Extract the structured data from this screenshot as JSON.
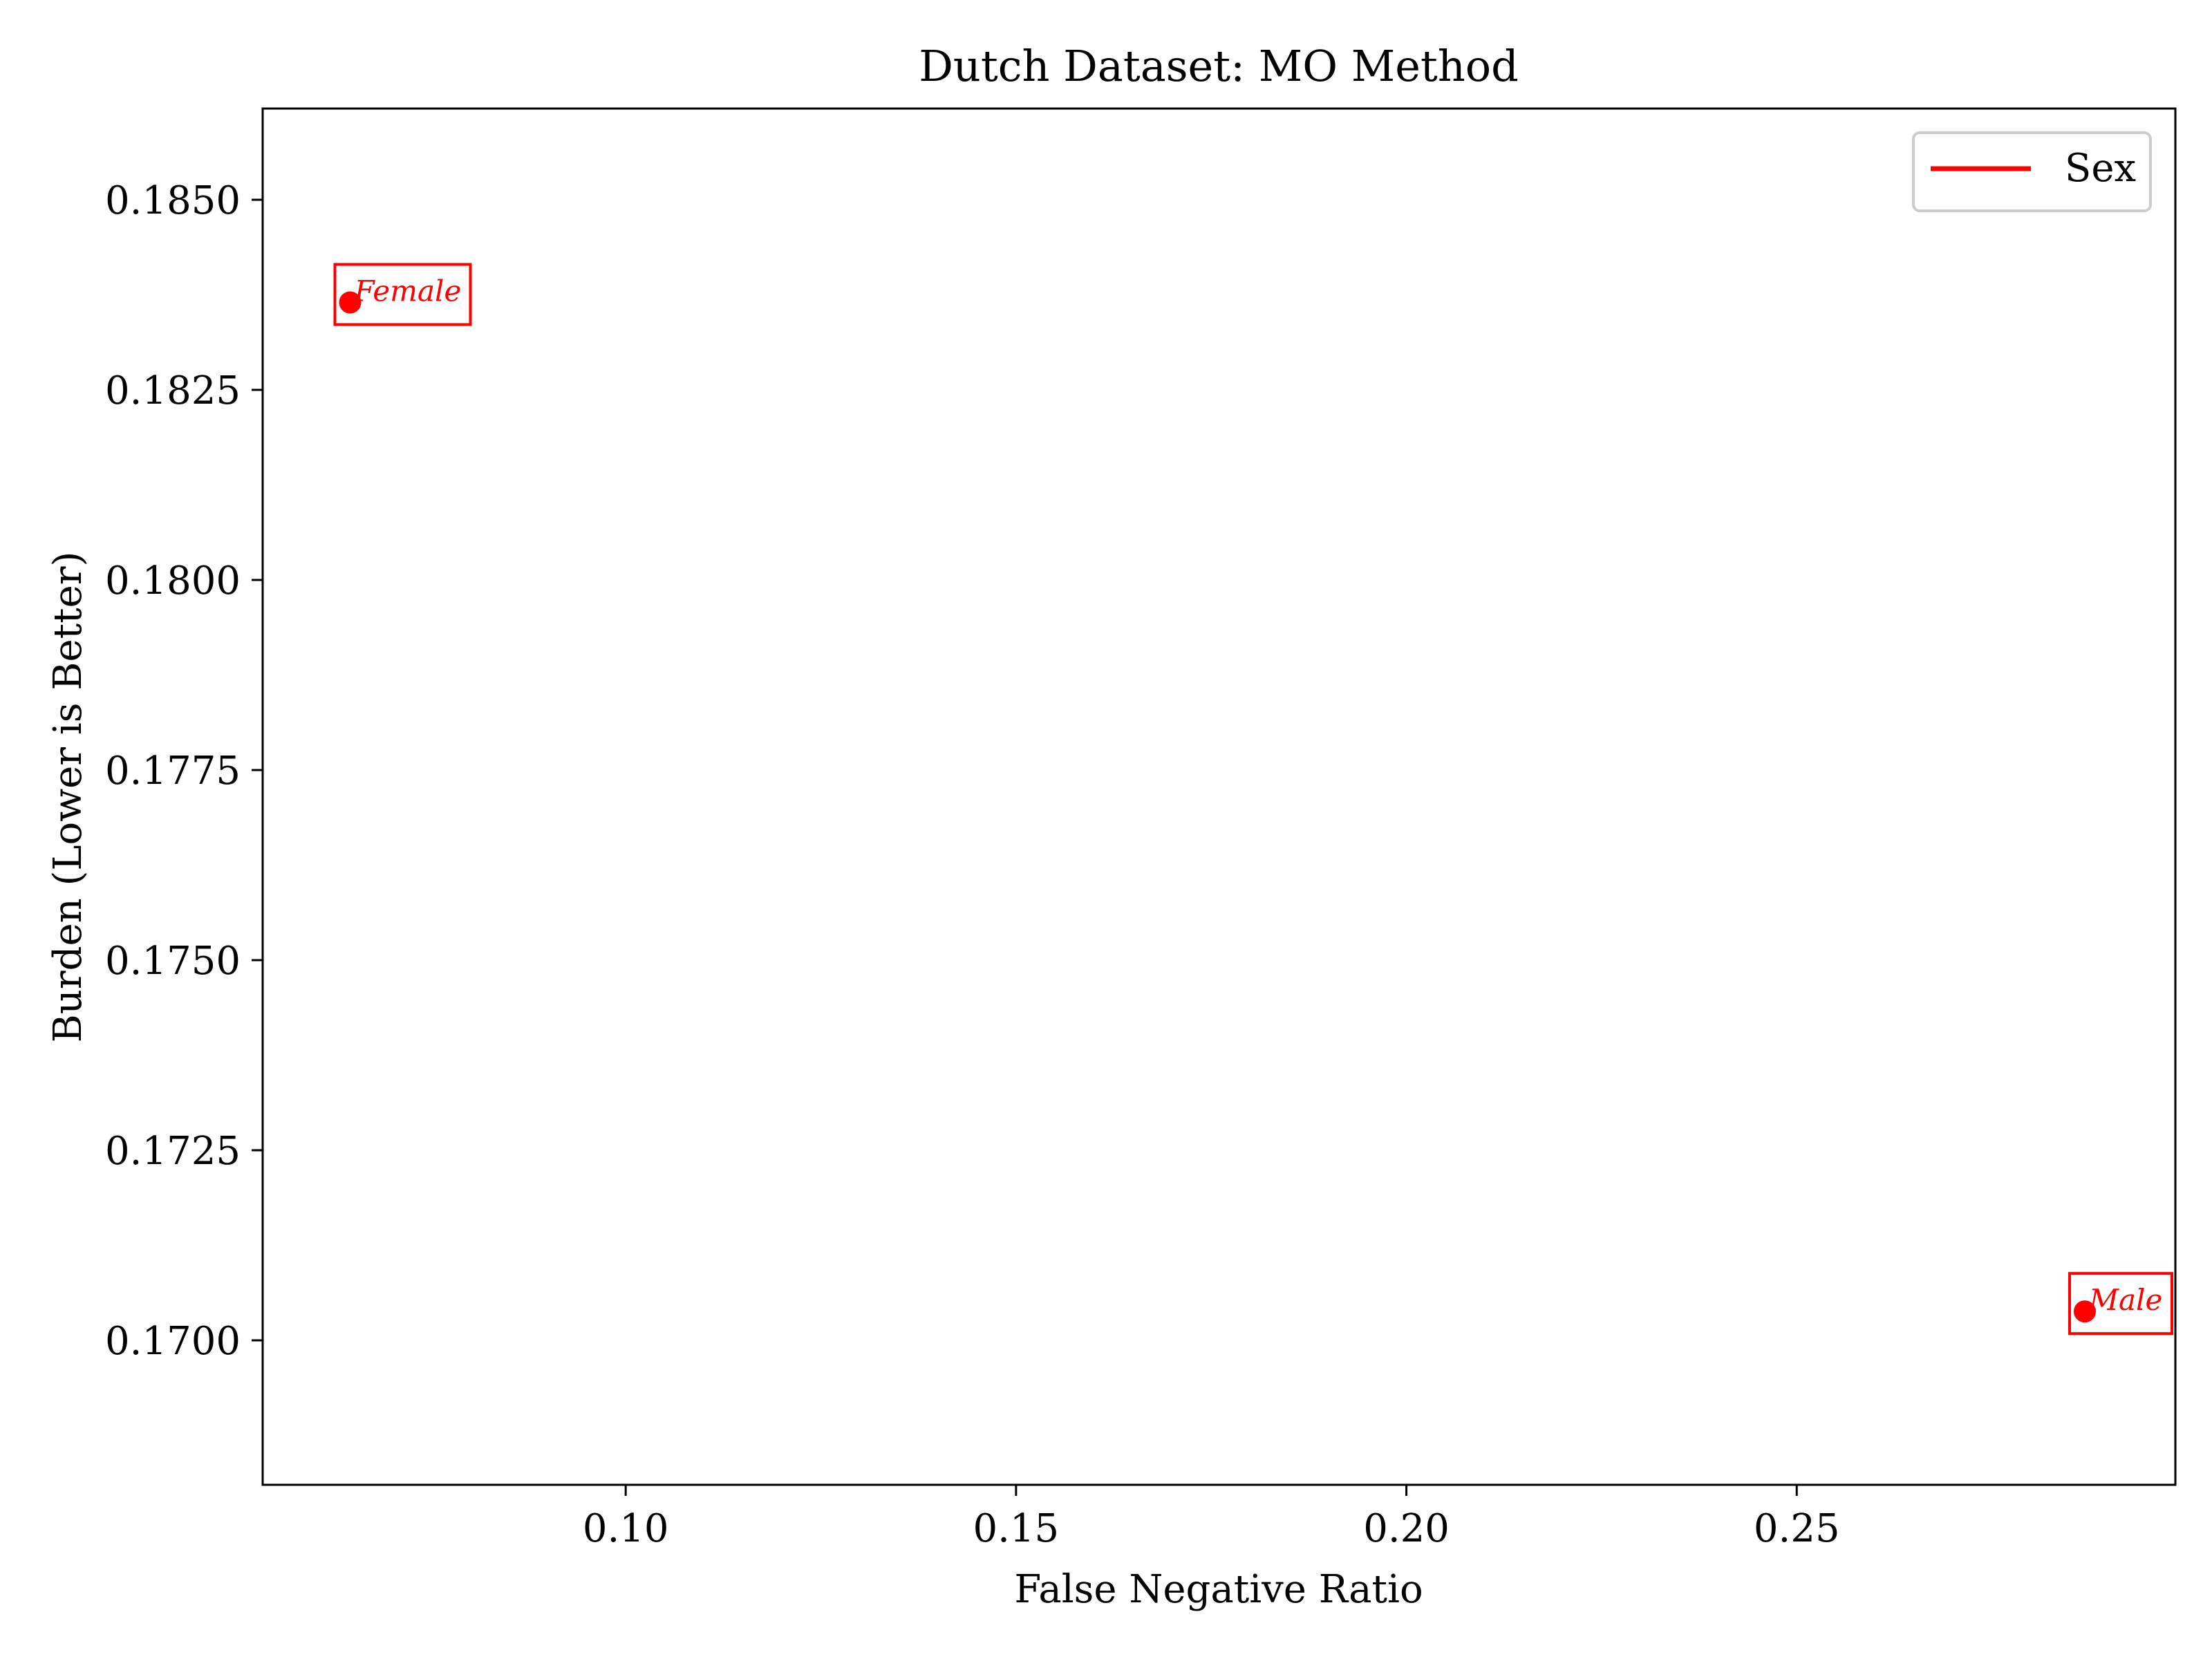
{
  "chart_data": {
    "type": "scatter",
    "title": "Dutch Dataset: MO Method",
    "xlabel": "False Negative Ratio",
    "ylabel": "Burden (Lower is Better)",
    "xlim": [
      0.0535,
      0.2985
    ],
    "ylim": [
      0.1681,
      0.1862
    ],
    "xticks": [
      0.1,
      0.15,
      0.2,
      0.25
    ],
    "xtick_labels": [
      "0.10",
      "0.15",
      "0.20",
      "0.25"
    ],
    "yticks": [
      0.17,
      0.1725,
      0.175,
      0.1775,
      0.18,
      0.1825,
      0.185
    ],
    "ytick_labels": [
      "0.1700",
      "0.1725",
      "0.1750",
      "0.1775",
      "0.1800",
      "0.1825",
      "0.1850"
    ],
    "grid": false,
    "legend_position": "top-right",
    "series": [
      {
        "name": "Sex",
        "color": "#ff0000",
        "points": [
          {
            "label": "Female",
            "x": 0.0647,
            "y": 0.18365
          },
          {
            "label": "Male",
            "x": 0.2869,
            "y": 0.17038
          }
        ]
      }
    ]
  }
}
